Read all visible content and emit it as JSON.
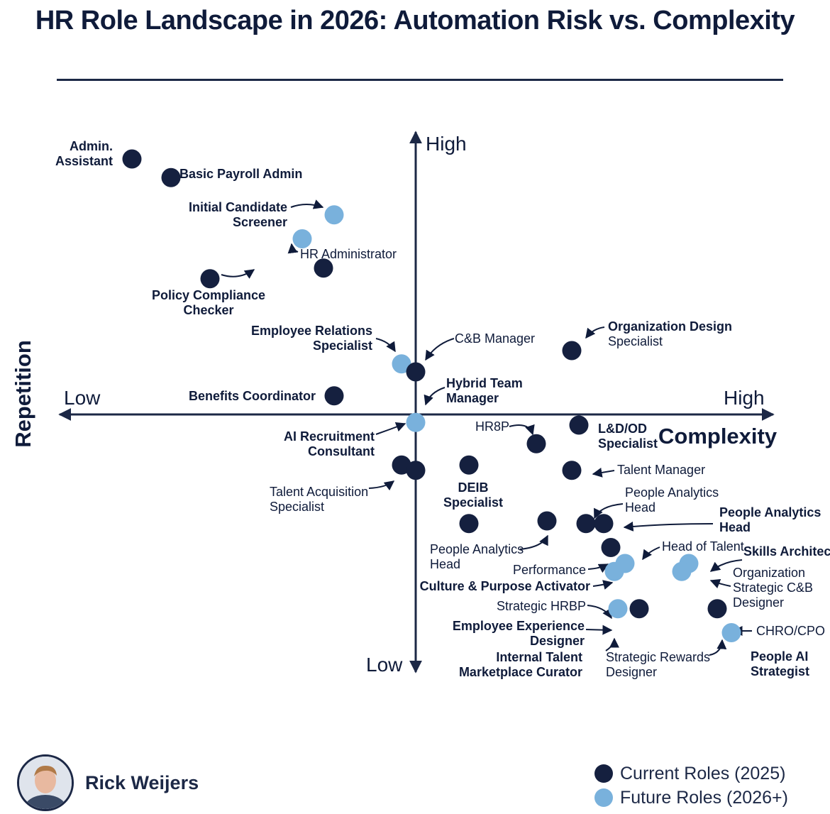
{
  "title": "HR Role Landscape in 2026: Automation Risk vs. Complexity",
  "colors": {
    "current": "#15203f",
    "future": "#79b1dc",
    "ink": "#0f1b3a"
  },
  "chart_data": {
    "type": "scatter",
    "title": "HR Role Landscape in 2026: Automation Risk vs. Complexity",
    "xlabel": "Complexity",
    "ylabel": "Repetition",
    "x_low": "Low",
    "x_high": "High",
    "y_low": "Low",
    "y_high": "High",
    "xlim": [
      -10,
      10
    ],
    "ylim": [
      -10,
      10
    ],
    "legend": {
      "position": "bottom-right",
      "items": [
        {
          "name": "Current Roles (2025)",
          "group": "current"
        },
        {
          "name": "Future Roles (2026+)",
          "group": "future"
        }
      ]
    },
    "points": [
      {
        "x": -8.0,
        "y": 9.6,
        "group": "current"
      },
      {
        "x": -6.9,
        "y": 8.9,
        "group": "current"
      },
      {
        "x": -2.3,
        "y": 7.5,
        "group": "future"
      },
      {
        "x": -3.2,
        "y": 6.6,
        "group": "future"
      },
      {
        "x": -2.6,
        "y": 5.5,
        "group": "current"
      },
      {
        "x": -5.8,
        "y": 5.1,
        "group": "current"
      },
      {
        "x": -0.4,
        "y": 1.9,
        "group": "future"
      },
      {
        "x": 0.0,
        "y": 1.6,
        "group": "current"
      },
      {
        "x": 4.4,
        "y": 2.4,
        "group": "current"
      },
      {
        "x": -2.3,
        "y": 0.7,
        "group": "current"
      },
      {
        "x": 0.0,
        "y": -0.3,
        "group": "future"
      },
      {
        "x": -0.4,
        "y": -1.9,
        "group": "current"
      },
      {
        "x": 0.0,
        "y": -2.1,
        "group": "current"
      },
      {
        "x": 1.5,
        "y": -1.9,
        "group": "current"
      },
      {
        "x": 3.4,
        "y": -1.1,
        "group": "current"
      },
      {
        "x": 4.6,
        "y": -0.4,
        "group": "current"
      },
      {
        "x": 4.4,
        "y": -2.1,
        "group": "current"
      },
      {
        "x": 1.5,
        "y": -4.1,
        "group": "current"
      },
      {
        "x": 3.7,
        "y": -4.0,
        "group": "current"
      },
      {
        "x": 4.8,
        "y": -4.1,
        "group": "current"
      },
      {
        "x": 5.3,
        "y": -4.1,
        "group": "current"
      },
      {
        "x": 5.5,
        "y": -5.0,
        "group": "current"
      },
      {
        "x": 5.9,
        "y": -5.6,
        "group": "future"
      },
      {
        "x": 5.6,
        "y": -5.9,
        "group": "future"
      },
      {
        "x": 7.7,
        "y": -5.6,
        "group": "future"
      },
      {
        "x": 7.5,
        "y": -5.9,
        "group": "future"
      },
      {
        "x": 5.7,
        "y": -7.3,
        "group": "future"
      },
      {
        "x": 6.3,
        "y": -7.3,
        "group": "current"
      },
      {
        "x": 8.5,
        "y": -7.3,
        "group": "current"
      },
      {
        "x": 8.9,
        "y": -8.2,
        "group": "future"
      }
    ],
    "labels": [
      {
        "lines": [
          "Admin.",
          "Assistant"
        ],
        "bold": true
      },
      {
        "lines": [
          "Basic Payroll Admin"
        ],
        "bold": true
      },
      {
        "lines": [
          "Initial Candidate",
          "Screener"
        ],
        "bold": true
      },
      {
        "lines": [
          "HR Administrator"
        ],
        "bold": false
      },
      {
        "lines": [
          "Policy Compliance",
          "Checker"
        ],
        "bold": true
      },
      {
        "lines": [
          "Employee Relations",
          "Specialist"
        ],
        "bold": true
      },
      {
        "lines": [
          "C&B Manager"
        ],
        "bold": false
      },
      {
        "lines": [
          "Organization Design",
          "Specialist"
        ],
        "bold": "first"
      },
      {
        "lines": [
          "Hybrid Team",
          "Manager"
        ],
        "bold": true
      },
      {
        "lines": [
          "Benefits Coordinator"
        ],
        "bold": true
      },
      {
        "lines": [
          "AI Recruitment",
          "Consultant"
        ],
        "bold": true
      },
      {
        "lines": [
          "HR8P"
        ],
        "bold": false
      },
      {
        "lines": [
          "L&D/OD",
          "Specialist"
        ],
        "bold": true
      },
      {
        "lines": [
          "Talent Manager"
        ],
        "bold": false
      },
      {
        "lines": [
          "Talent Acquisition",
          "Specialist"
        ],
        "bold": false
      },
      {
        "lines": [
          "DEIB",
          "Specialist"
        ],
        "bold": true
      },
      {
        "lines": [
          "People Analytics",
          "Head"
        ],
        "bold": false
      },
      {
        "lines": [
          "People Analytics",
          "Head"
        ],
        "bold": true
      },
      {
        "lines": [
          "People Analytics",
          "Head"
        ],
        "bold": false
      },
      {
        "lines": [
          "Head of Talent"
        ],
        "bold": false
      },
      {
        "lines": [
          "Skills Architect"
        ],
        "bold": true
      },
      {
        "lines": [
          "Performance"
        ],
        "bold": false
      },
      {
        "lines": [
          "Culture & Purpose Activator"
        ],
        "bold": true
      },
      {
        "lines": [
          "Organization",
          "Strategic C&B",
          "Designer"
        ],
        "bold": false
      },
      {
        "lines": [
          "Strategic HRBP"
        ],
        "bold": false
      },
      {
        "lines": [
          "Employee Experience",
          "Designer"
        ],
        "bold": true
      },
      {
        "lines": [
          "CHRO/CPO"
        ],
        "bold": false
      },
      {
        "lines": [
          "Internal Talent",
          "Marketplace Curator"
        ],
        "bold": true
      },
      {
        "lines": [
          "Strategic Rewards",
          "Designer"
        ],
        "bold": false
      },
      {
        "lines": [
          "People AI",
          "Strategist"
        ],
        "bold": true
      }
    ]
  },
  "author": {
    "name": "Rick Weijers",
    "avatar_icon": "person-avatar-icon"
  }
}
